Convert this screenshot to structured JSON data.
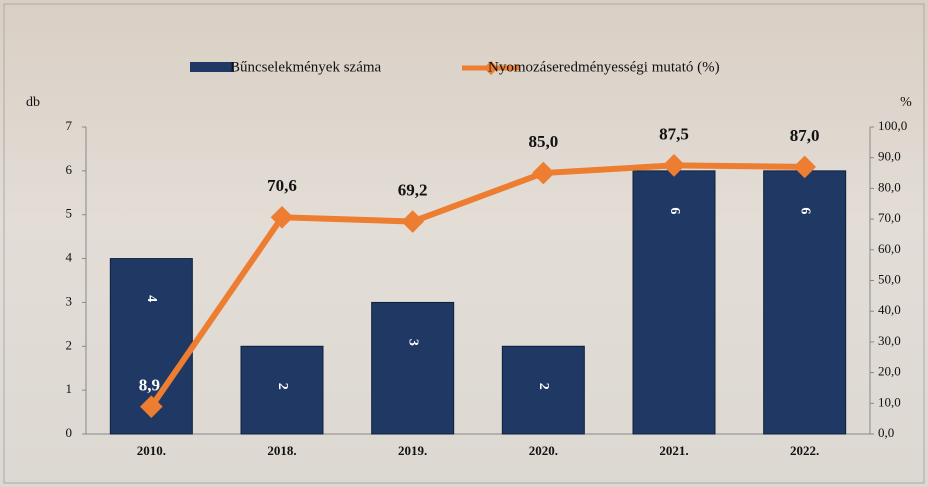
{
  "chart_data": {
    "type": "bar",
    "y_label": "db",
    "y2_label": "%",
    "categories": [
      "2010.",
      "2018.",
      "2019.",
      "2020.",
      "2021.",
      "2022."
    ],
    "series": [
      {
        "name": "Bűncselekmények száma",
        "type": "bar",
        "color": "#1f3864",
        "values": [
          4,
          2,
          3,
          2,
          6,
          6
        ]
      },
      {
        "name": "Nyomozáseredményességi mutató (%)",
        "type": "line",
        "axis": "y2",
        "color": "#ed7d31",
        "values": [
          8.9,
          70.6,
          69.2,
          85.0,
          87.5,
          87.0
        ],
        "value_labels": [
          "8,9",
          "70,6",
          "69,2",
          "85,0",
          "87,5",
          "87,0"
        ]
      }
    ],
    "ylim": [
      0,
      7
    ],
    "yticks": [
      0,
      1,
      2,
      3,
      4,
      5,
      6,
      7
    ],
    "y2lim": [
      0,
      100
    ],
    "y2ticks": [
      {
        "value": 0,
        "label": "0,0"
      },
      {
        "value": 10,
        "label": "10,0"
      },
      {
        "value": 20,
        "label": "20,0"
      },
      {
        "value": 30,
        "label": "30,0"
      },
      {
        "value": 40,
        "label": "40,0"
      },
      {
        "value": 50,
        "label": "50,0"
      },
      {
        "value": 60,
        "label": "60,0"
      },
      {
        "value": 70,
        "label": "70,0"
      },
      {
        "value": 80,
        "label": "80,0"
      },
      {
        "value": 90,
        "label": "90,0"
      },
      {
        "value": 100,
        "label": "100,0"
      }
    ],
    "legend": "top"
  }
}
